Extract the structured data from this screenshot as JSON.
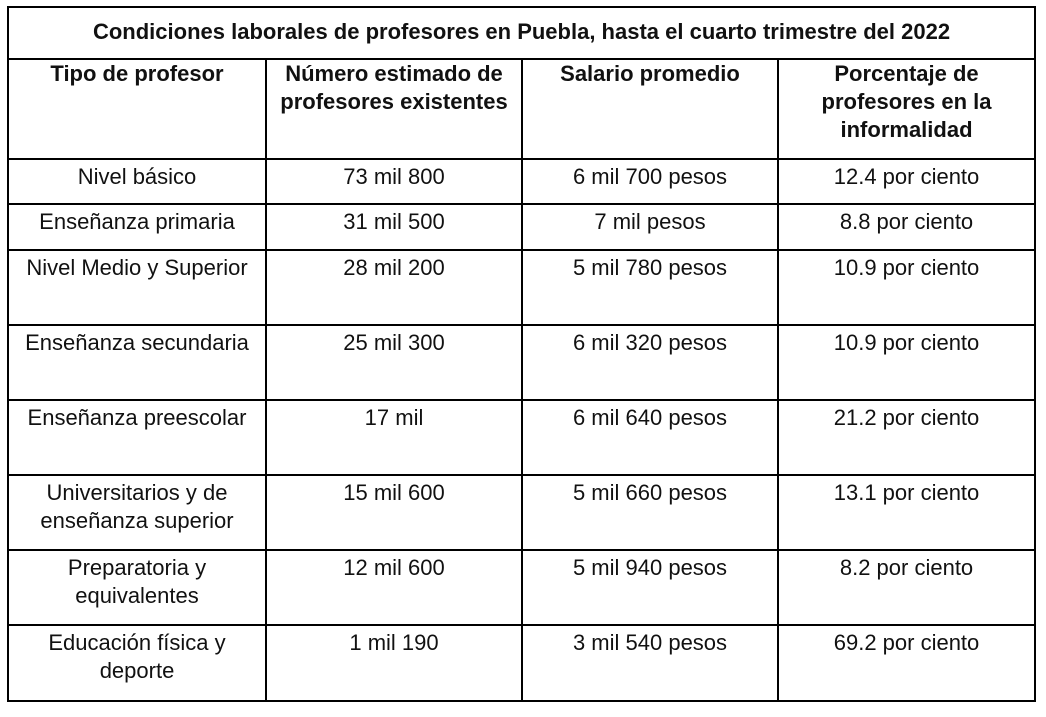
{
  "table": {
    "title": "Condiciones laborales de profesores en Puebla, hasta el cuarto trimestre del 2022",
    "headers": [
      "Tipo de profesor",
      "Número estimado de profesores existentes",
      "Salario promedio",
      "Porcentaje de profesores en la informalidad"
    ],
    "rows": [
      [
        "Nivel básico",
        "73 mil 800",
        "6 mil 700 pesos",
        "12.4 por ciento"
      ],
      [
        "Enseñanza primaria",
        "31 mil 500",
        "7 mil pesos",
        "8.8 por ciento"
      ],
      [
        "Nivel Medio y Superior",
        "28 mil 200",
        "5 mil 780 pesos",
        "10.9 por ciento"
      ],
      [
        "Enseñanza secundaria",
        "25 mil 300",
        "6 mil 320 pesos",
        "10.9 por ciento"
      ],
      [
        "Enseñanza preescolar",
        "17 mil",
        "6 mil 640 pesos",
        "21.2 por ciento"
      ],
      [
        "Universitarios y de enseñanza superior",
        "15 mil 600",
        "5 mil 660 pesos",
        "13.1 por ciento"
      ],
      [
        "Preparatoria y equivalentes",
        "12 mil 600",
        "5 mil 940 pesos",
        "8.2 por ciento"
      ],
      [
        "Educación física y deporte",
        "1 mil 190",
        "3 mil 540 pesos",
        "69.2 por ciento"
      ]
    ]
  }
}
